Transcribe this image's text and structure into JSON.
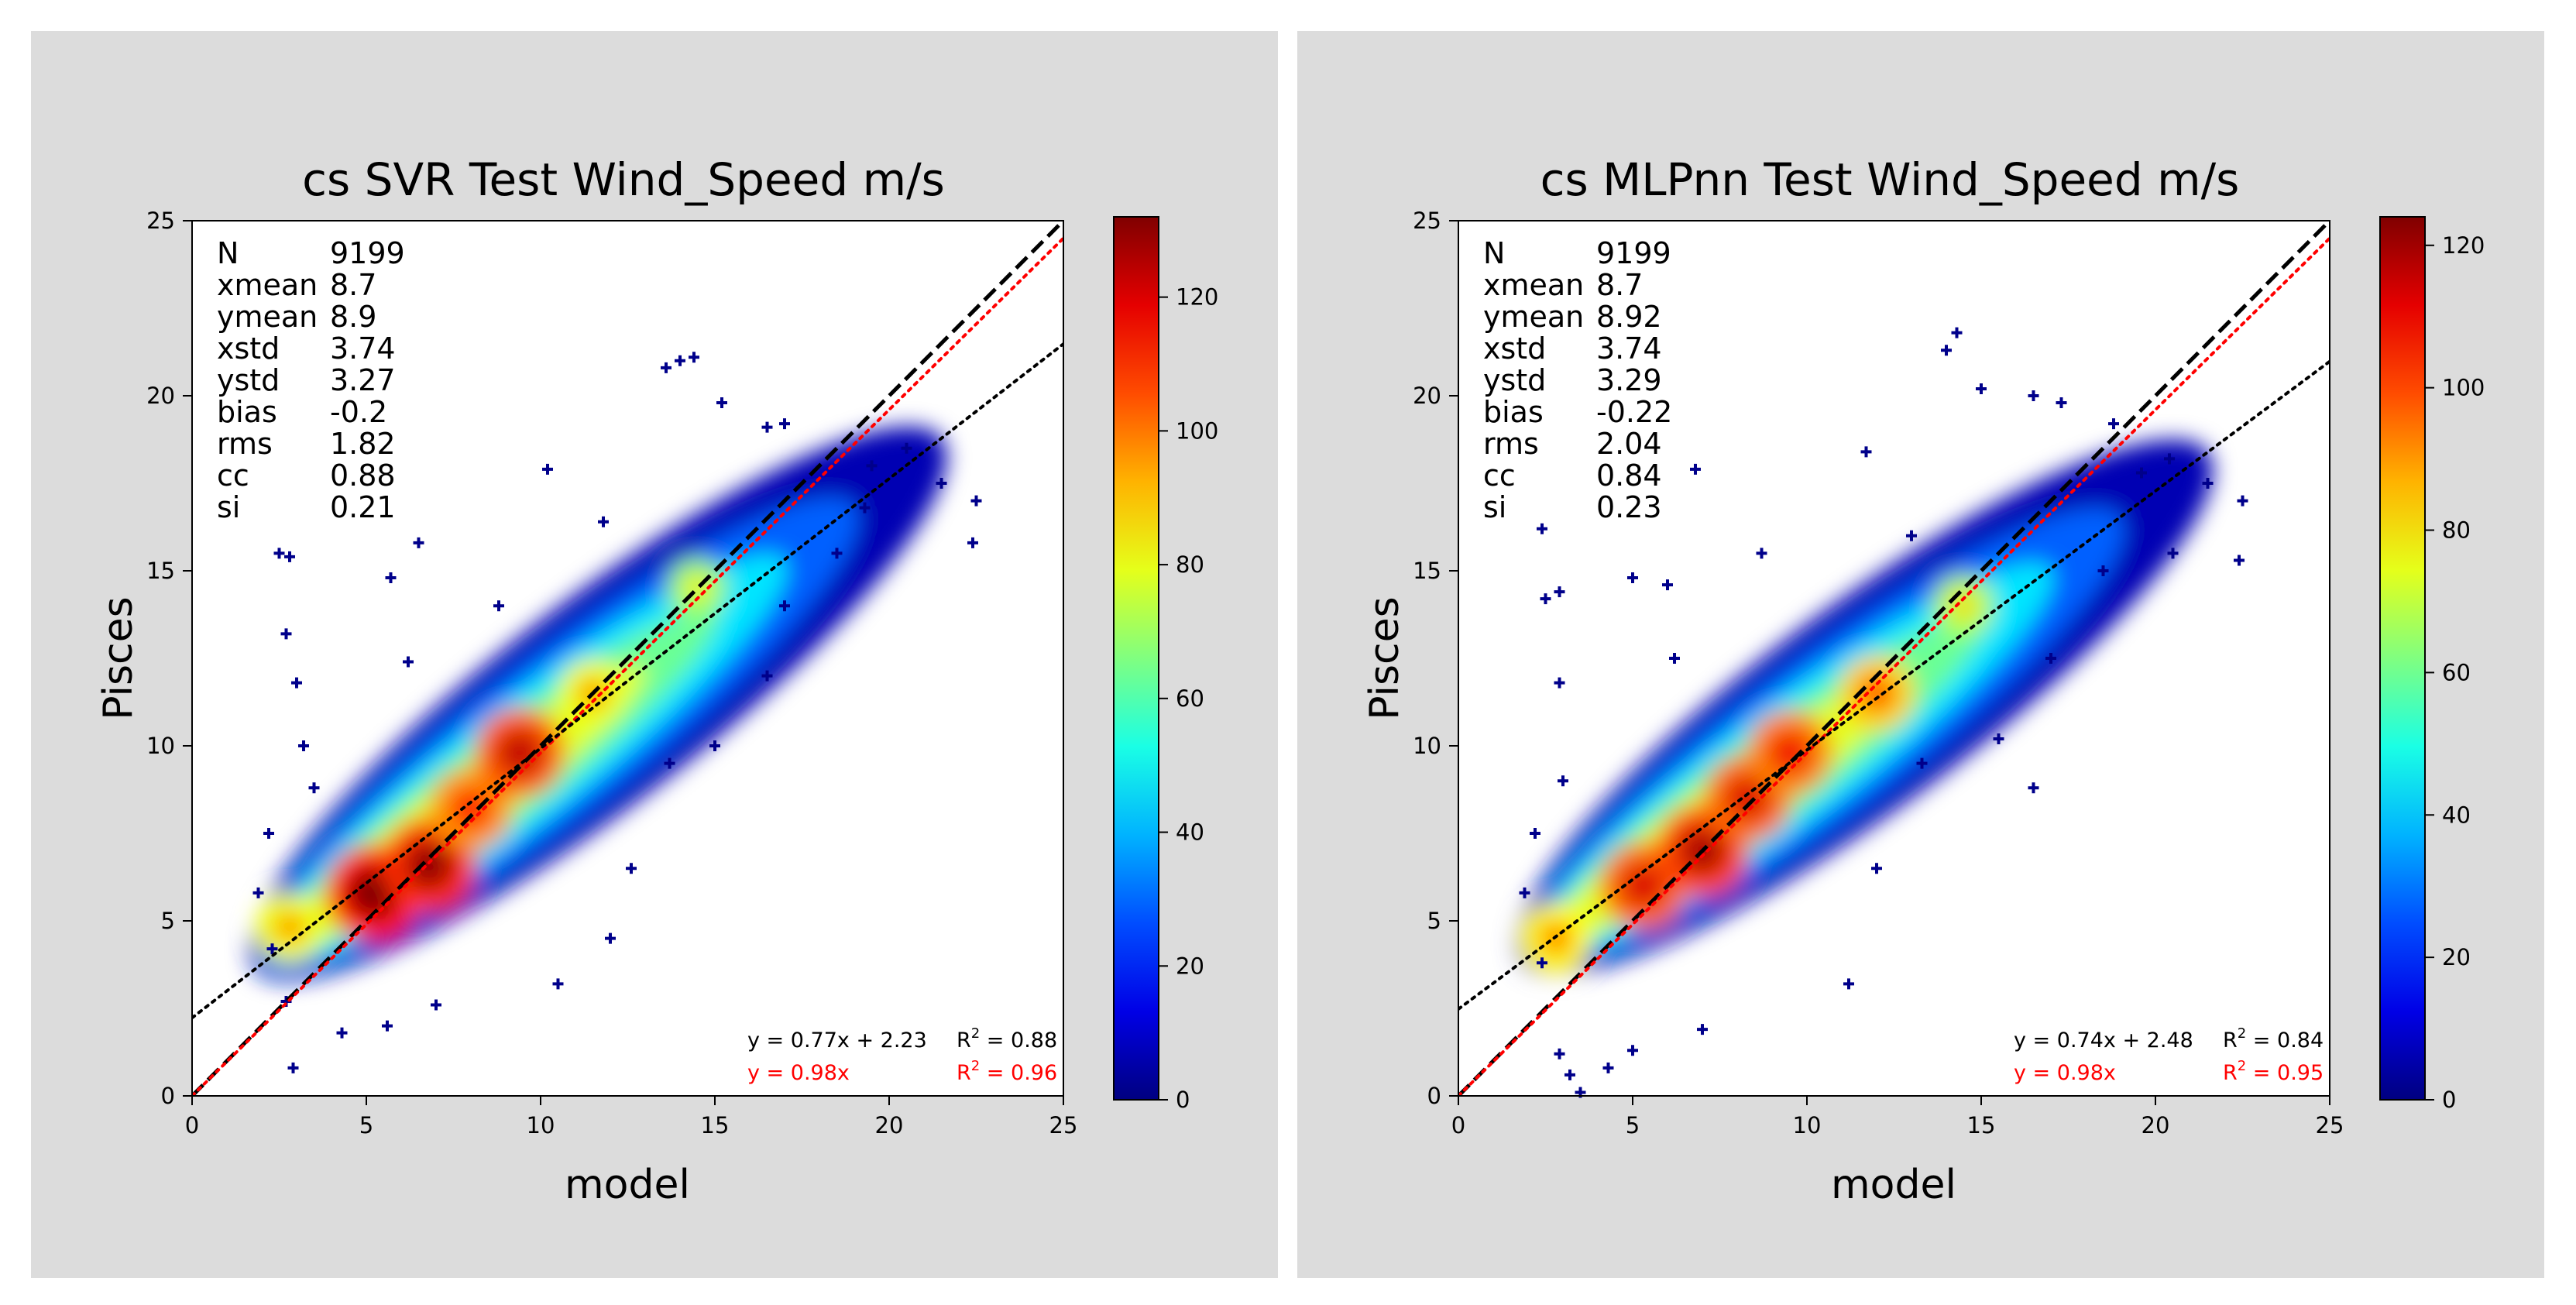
{
  "chart_data": [
    {
      "type": "scatter",
      "title": "cs SVR Test Wind_Speed m/s",
      "xlabel": "model",
      "ylabel": "Pisces",
      "xlim": [
        0,
        25
      ],
      "ylim": [
        0,
        25
      ],
      "xticks": [
        "0",
        "5",
        "10",
        "15",
        "20",
        "25"
      ],
      "yticks": [
        "0",
        "5",
        "10",
        "15",
        "20",
        "25"
      ],
      "colorbar": {
        "range": [
          0,
          132
        ],
        "ticks": [
          "0",
          "20",
          "40",
          "60",
          "80",
          "100",
          "120"
        ],
        "colormap": "jet"
      },
      "stats": [
        {
          "label": "N",
          "value": "9199"
        },
        {
          "label": "xmean",
          "value": "8.7"
        },
        {
          "label": "ymean",
          "value": "8.9"
        },
        {
          "label": "xstd",
          "value": "3.74"
        },
        {
          "label": "ystd",
          "value": "3.27"
        },
        {
          "label": "bias",
          "value": "-0.2"
        },
        {
          "label": "rms",
          "value": "1.82"
        },
        {
          "label": "cc",
          "value": "0.88"
        },
        {
          "label": "si",
          "value": "0.21"
        }
      ],
      "fit_lines": [
        {
          "name": "1:1",
          "slope": 1.0,
          "intercept": 0,
          "style": "dashed",
          "color": "#000000"
        },
        {
          "name": "regression through origin",
          "slope": 0.98,
          "intercept": 0,
          "style": "dotted",
          "color": "#ff0000"
        },
        {
          "name": "linear regression",
          "slope": 0.77,
          "intercept": 2.23,
          "style": "dotted",
          "color": "#000000"
        }
      ],
      "annotations": {
        "fit_eq": "y = 0.77x + 2.23",
        "fit_r2": "0.88",
        "origin_eq": "y = 0.98x",
        "origin_r2": "0.96",
        "r2_prefix": "R",
        "r2_exp": "2",
        "r2_eq": " = "
      },
      "density_cores": [
        [
          2.8,
          4.8,
          0.4
        ],
        [
          5.2,
          5.8,
          1.0
        ],
        [
          6.8,
          6.6,
          0.95
        ],
        [
          8.0,
          8.2,
          0.7
        ],
        [
          9.4,
          9.8,
          0.85
        ],
        [
          11.5,
          11.5,
          0.4
        ],
        [
          14.5,
          14.5,
          0.2
        ]
      ],
      "outliers": [
        [
          14.0,
          21.0
        ],
        [
          14.4,
          21.1
        ],
        [
          13.6,
          20.8
        ],
        [
          15.2,
          19.8
        ],
        [
          16.5,
          19.1
        ],
        [
          17.0,
          19.2
        ],
        [
          19.5,
          18.0
        ],
        [
          21.5,
          17.5
        ],
        [
          22.5,
          17.0
        ],
        [
          22.4,
          15.8
        ],
        [
          2.5,
          15.5
        ],
        [
          2.8,
          15.4
        ],
        [
          6.5,
          15.8
        ],
        [
          10.2,
          17.9
        ],
        [
          5.7,
          14.8
        ],
        [
          2.7,
          13.2
        ],
        [
          3.0,
          11.8
        ],
        [
          3.2,
          10.0
        ],
        [
          3.5,
          8.8
        ],
        [
          2.2,
          7.5
        ],
        [
          2.3,
          4.2
        ],
        [
          2.7,
          2.7
        ],
        [
          2.9,
          0.8
        ],
        [
          4.3,
          1.8
        ],
        [
          5.6,
          2.0
        ],
        [
          7.0,
          2.6
        ],
        [
          10.5,
          3.2
        ],
        [
          12.0,
          4.5
        ],
        [
          15.0,
          10.0
        ],
        [
          16.5,
          12.0
        ],
        [
          20.5,
          18.5
        ],
        [
          17.0,
          14.0
        ],
        [
          11.8,
          16.4
        ],
        [
          8.8,
          14.0
        ],
        [
          6.2,
          12.4
        ],
        [
          19.3,
          16.8
        ],
        [
          18.5,
          15.5
        ],
        [
          12.6,
          6.5
        ],
        [
          13.7,
          9.5
        ],
        [
          1.9,
          5.8
        ]
      ]
    },
    {
      "type": "scatter",
      "title": "cs MLPnn Test Wind_Speed m/s",
      "xlabel": "model",
      "ylabel": "Pisces",
      "xlim": [
        0,
        25
      ],
      "ylim": [
        0,
        25
      ],
      "xticks": [
        "0",
        "5",
        "10",
        "15",
        "20",
        "25"
      ],
      "yticks": [
        "0",
        "5",
        "10",
        "15",
        "20",
        "25"
      ],
      "colorbar": {
        "range": [
          0,
          124
        ],
        "ticks": [
          "0",
          "20",
          "40",
          "60",
          "80",
          "100",
          "120"
        ],
        "colormap": "jet"
      },
      "stats": [
        {
          "label": "N",
          "value": "9199"
        },
        {
          "label": "xmean",
          "value": "8.7"
        },
        {
          "label": "ymean",
          "value": "8.92"
        },
        {
          "label": "xstd",
          "value": "3.74"
        },
        {
          "label": "ystd",
          "value": "3.29"
        },
        {
          "label": "bias",
          "value": "-0.22"
        },
        {
          "label": "rms",
          "value": "2.04"
        },
        {
          "label": "cc",
          "value": "0.84"
        },
        {
          "label": "si",
          "value": "0.23"
        }
      ],
      "fit_lines": [
        {
          "name": "1:1",
          "slope": 1.0,
          "intercept": 0,
          "style": "dashed",
          "color": "#000000"
        },
        {
          "name": "regression through origin",
          "slope": 0.98,
          "intercept": 0,
          "style": "dotted",
          "color": "#ff0000"
        },
        {
          "name": "linear regression",
          "slope": 0.74,
          "intercept": 2.48,
          "style": "dotted",
          "color": "#000000"
        }
      ],
      "annotations": {
        "fit_eq": "y = 0.74x + 2.48",
        "fit_r2": "0.84",
        "origin_eq": "y = 0.98x",
        "origin_r2": "0.95",
        "r2_prefix": "R",
        "r2_exp": "2",
        "r2_eq": " = "
      },
      "density_cores": [
        [
          2.8,
          4.5,
          0.45
        ],
        [
          5.3,
          6.0,
          0.8
        ],
        [
          7.0,
          7.0,
          0.9
        ],
        [
          8.3,
          8.5,
          0.8
        ],
        [
          9.5,
          9.8,
          0.75
        ],
        [
          12.0,
          11.5,
          0.55
        ],
        [
          14.5,
          14.0,
          0.25
        ]
      ],
      "outliers": [
        [
          14.3,
          21.8
        ],
        [
          14.0,
          21.3
        ],
        [
          15.0,
          20.2
        ],
        [
          16.5,
          20.0
        ],
        [
          17.3,
          19.8
        ],
        [
          18.8,
          19.2
        ],
        [
          19.6,
          17.8
        ],
        [
          21.5,
          17.5
        ],
        [
          22.5,
          17.0
        ],
        [
          22.4,
          15.3
        ],
        [
          20.5,
          15.5
        ],
        [
          2.4,
          16.2
        ],
        [
          2.5,
          14.2
        ],
        [
          2.9,
          14.4
        ],
        [
          5.0,
          14.8
        ],
        [
          6.8,
          17.9
        ],
        [
          6.0,
          14.6
        ],
        [
          2.9,
          11.8
        ],
        [
          3.0,
          9.0
        ],
        [
          2.2,
          7.5
        ],
        [
          2.4,
          3.8
        ],
        [
          2.9,
          1.2
        ],
        [
          3.2,
          0.6
        ],
        [
          3.5,
          0.1
        ],
        [
          4.3,
          0.8
        ],
        [
          5.0,
          1.3
        ],
        [
          7.0,
          1.9
        ],
        [
          11.2,
          3.2
        ],
        [
          12.0,
          6.5
        ],
        [
          13.3,
          9.5
        ],
        [
          15.5,
          10.2
        ],
        [
          17.0,
          12.5
        ],
        [
          11.7,
          18.4
        ],
        [
          8.7,
          15.5
        ],
        [
          6.2,
          12.5
        ],
        [
          20.4,
          18.2
        ],
        [
          18.5,
          15.0
        ],
        [
          16.5,
          8.8
        ],
        [
          1.9,
          5.8
        ],
        [
          13.0,
          16.0
        ]
      ]
    }
  ]
}
